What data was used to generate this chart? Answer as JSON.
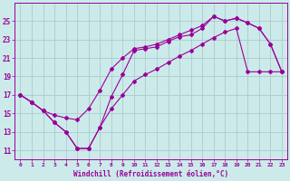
{
  "background_color": "#cceaea",
  "grid_color": "#aacccc",
  "line_color": "#990099",
  "xlim": [
    -0.5,
    23.5
  ],
  "ylim": [
    10,
    27
  ],
  "xticks": [
    0,
    1,
    2,
    3,
    4,
    5,
    6,
    7,
    8,
    9,
    10,
    11,
    12,
    13,
    14,
    15,
    16,
    17,
    18,
    19,
    20,
    21,
    22,
    23
  ],
  "yticks": [
    11,
    13,
    15,
    17,
    19,
    21,
    23,
    25
  ],
  "xlabel": "Windchill (Refroidissement éolien,°C)",
  "series1_x": [
    0,
    1,
    2,
    3,
    4,
    5,
    6,
    7,
    8,
    9,
    10,
    11,
    12,
    13,
    14,
    15,
    16,
    17,
    18,
    19,
    20,
    21,
    22,
    23
  ],
  "series1_y": [
    17.0,
    16.2,
    15.3,
    14.0,
    13.0,
    11.2,
    11.2,
    13.5,
    16.8,
    19.2,
    21.8,
    22.0,
    22.2,
    22.8,
    23.3,
    23.5,
    24.2,
    25.5,
    25.0,
    25.3,
    24.8,
    24.2,
    22.5,
    19.5
  ],
  "series2_x": [
    0,
    1,
    2,
    3,
    4,
    5,
    6,
    7,
    8,
    9,
    10,
    11,
    12,
    13,
    14,
    15,
    16,
    17,
    18,
    19,
    20,
    21,
    22,
    23
  ],
  "series2_y": [
    17.0,
    16.2,
    15.3,
    14.8,
    14.5,
    14.3,
    15.5,
    17.5,
    19.8,
    21.0,
    22.0,
    22.2,
    22.5,
    23.0,
    23.5,
    24.0,
    24.5,
    25.5,
    25.0,
    25.3,
    24.8,
    24.2,
    22.5,
    19.5
  ],
  "series3_x": [
    0,
    1,
    2,
    3,
    4,
    5,
    6,
    7,
    8,
    9,
    10,
    11,
    12,
    13,
    14,
    15,
    16,
    17,
    18,
    19,
    20,
    21,
    22,
    23
  ],
  "series3_y": [
    17.0,
    16.2,
    15.3,
    14.0,
    13.0,
    11.2,
    11.2,
    13.5,
    15.5,
    17.0,
    18.5,
    19.2,
    19.8,
    20.5,
    21.2,
    21.8,
    22.5,
    23.2,
    23.8,
    24.2,
    19.5,
    19.5,
    19.5,
    19.5
  ]
}
